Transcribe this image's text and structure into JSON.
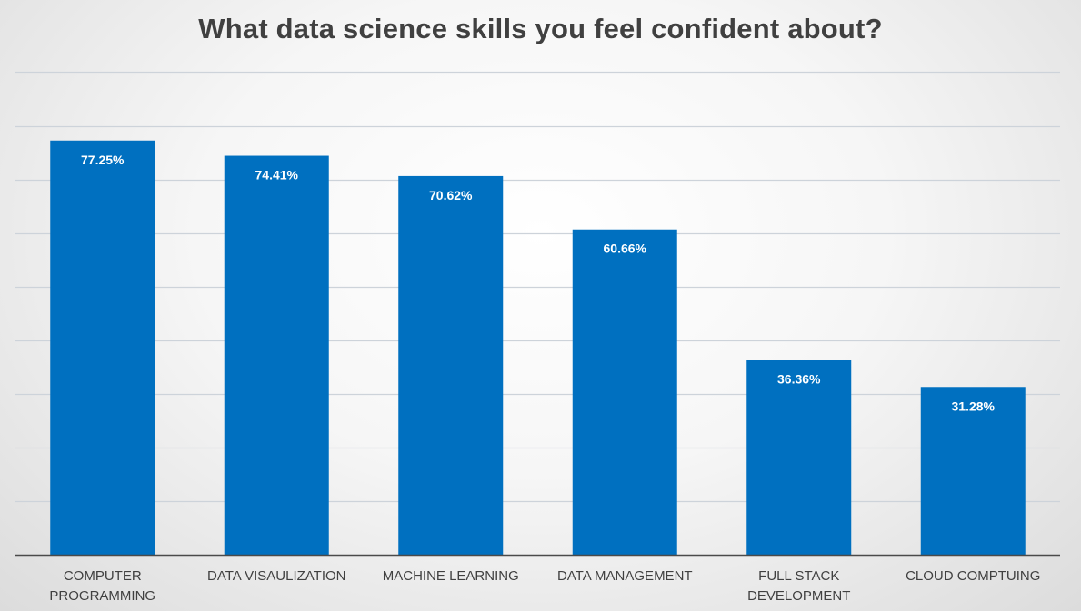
{
  "chart_data": {
    "type": "bar",
    "title": "What data science skills you feel confident about?",
    "categories": [
      [
        "COMPUTER",
        "PROGRAMMING"
      ],
      [
        "DATA VISAULIZATION"
      ],
      [
        "MACHINE LEARNING"
      ],
      [
        "DATA MANAGEMENT"
      ],
      [
        "FULL STACK",
        "DEVELOPMENT"
      ],
      [
        "CLOUD COMPTUING"
      ]
    ],
    "values": [
      77.25,
      74.41,
      70.62,
      60.66,
      36.36,
      31.28
    ],
    "value_labels": [
      "77.25%",
      "74.41%",
      "70.62%",
      "60.66%",
      "36.36%",
      "31.28%"
    ],
    "ylim": [
      0,
      90
    ],
    "y_axis_visible": false,
    "grid": true,
    "legend": "none",
    "bar_color": "#0070C0",
    "value_label_color": "#ffffff",
    "grid_color": "#cdd3da"
  }
}
